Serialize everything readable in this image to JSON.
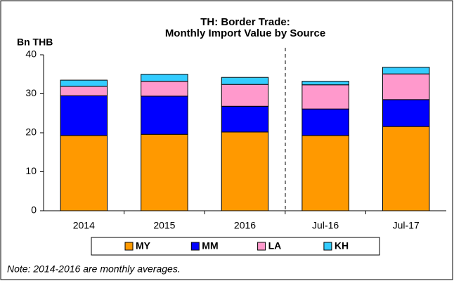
{
  "chart_data": {
    "type": "stacked_bar",
    "title": [
      "TH: Border Trade:",
      "Monthly Import Value by Source"
    ],
    "y_label": "Bn THB",
    "categories": [
      "2014",
      "2015",
      "2016",
      "Jul-16",
      "Jul-17"
    ],
    "series": [
      {
        "name": "MY",
        "color": "#ff9900",
        "values": [
          19.3,
          19.6,
          20.2,
          19.3,
          21.6
        ]
      },
      {
        "name": "MM",
        "color": "#0000ff",
        "values": [
          10.2,
          9.8,
          6.6,
          6.8,
          6.9
        ]
      },
      {
        "name": "LA",
        "color": "#ff99cc",
        "values": [
          2.4,
          3.8,
          5.6,
          6.2,
          6.6
        ]
      },
      {
        "name": "KH",
        "color": "#33ccff",
        "values": [
          1.6,
          1.8,
          1.8,
          0.9,
          1.7
        ]
      }
    ],
    "ylim": [
      0,
      40
    ],
    "yticks": [
      0,
      10,
      20,
      30,
      40
    ],
    "grid": false,
    "note": "Note: 2014-2016 are monthly averages."
  }
}
